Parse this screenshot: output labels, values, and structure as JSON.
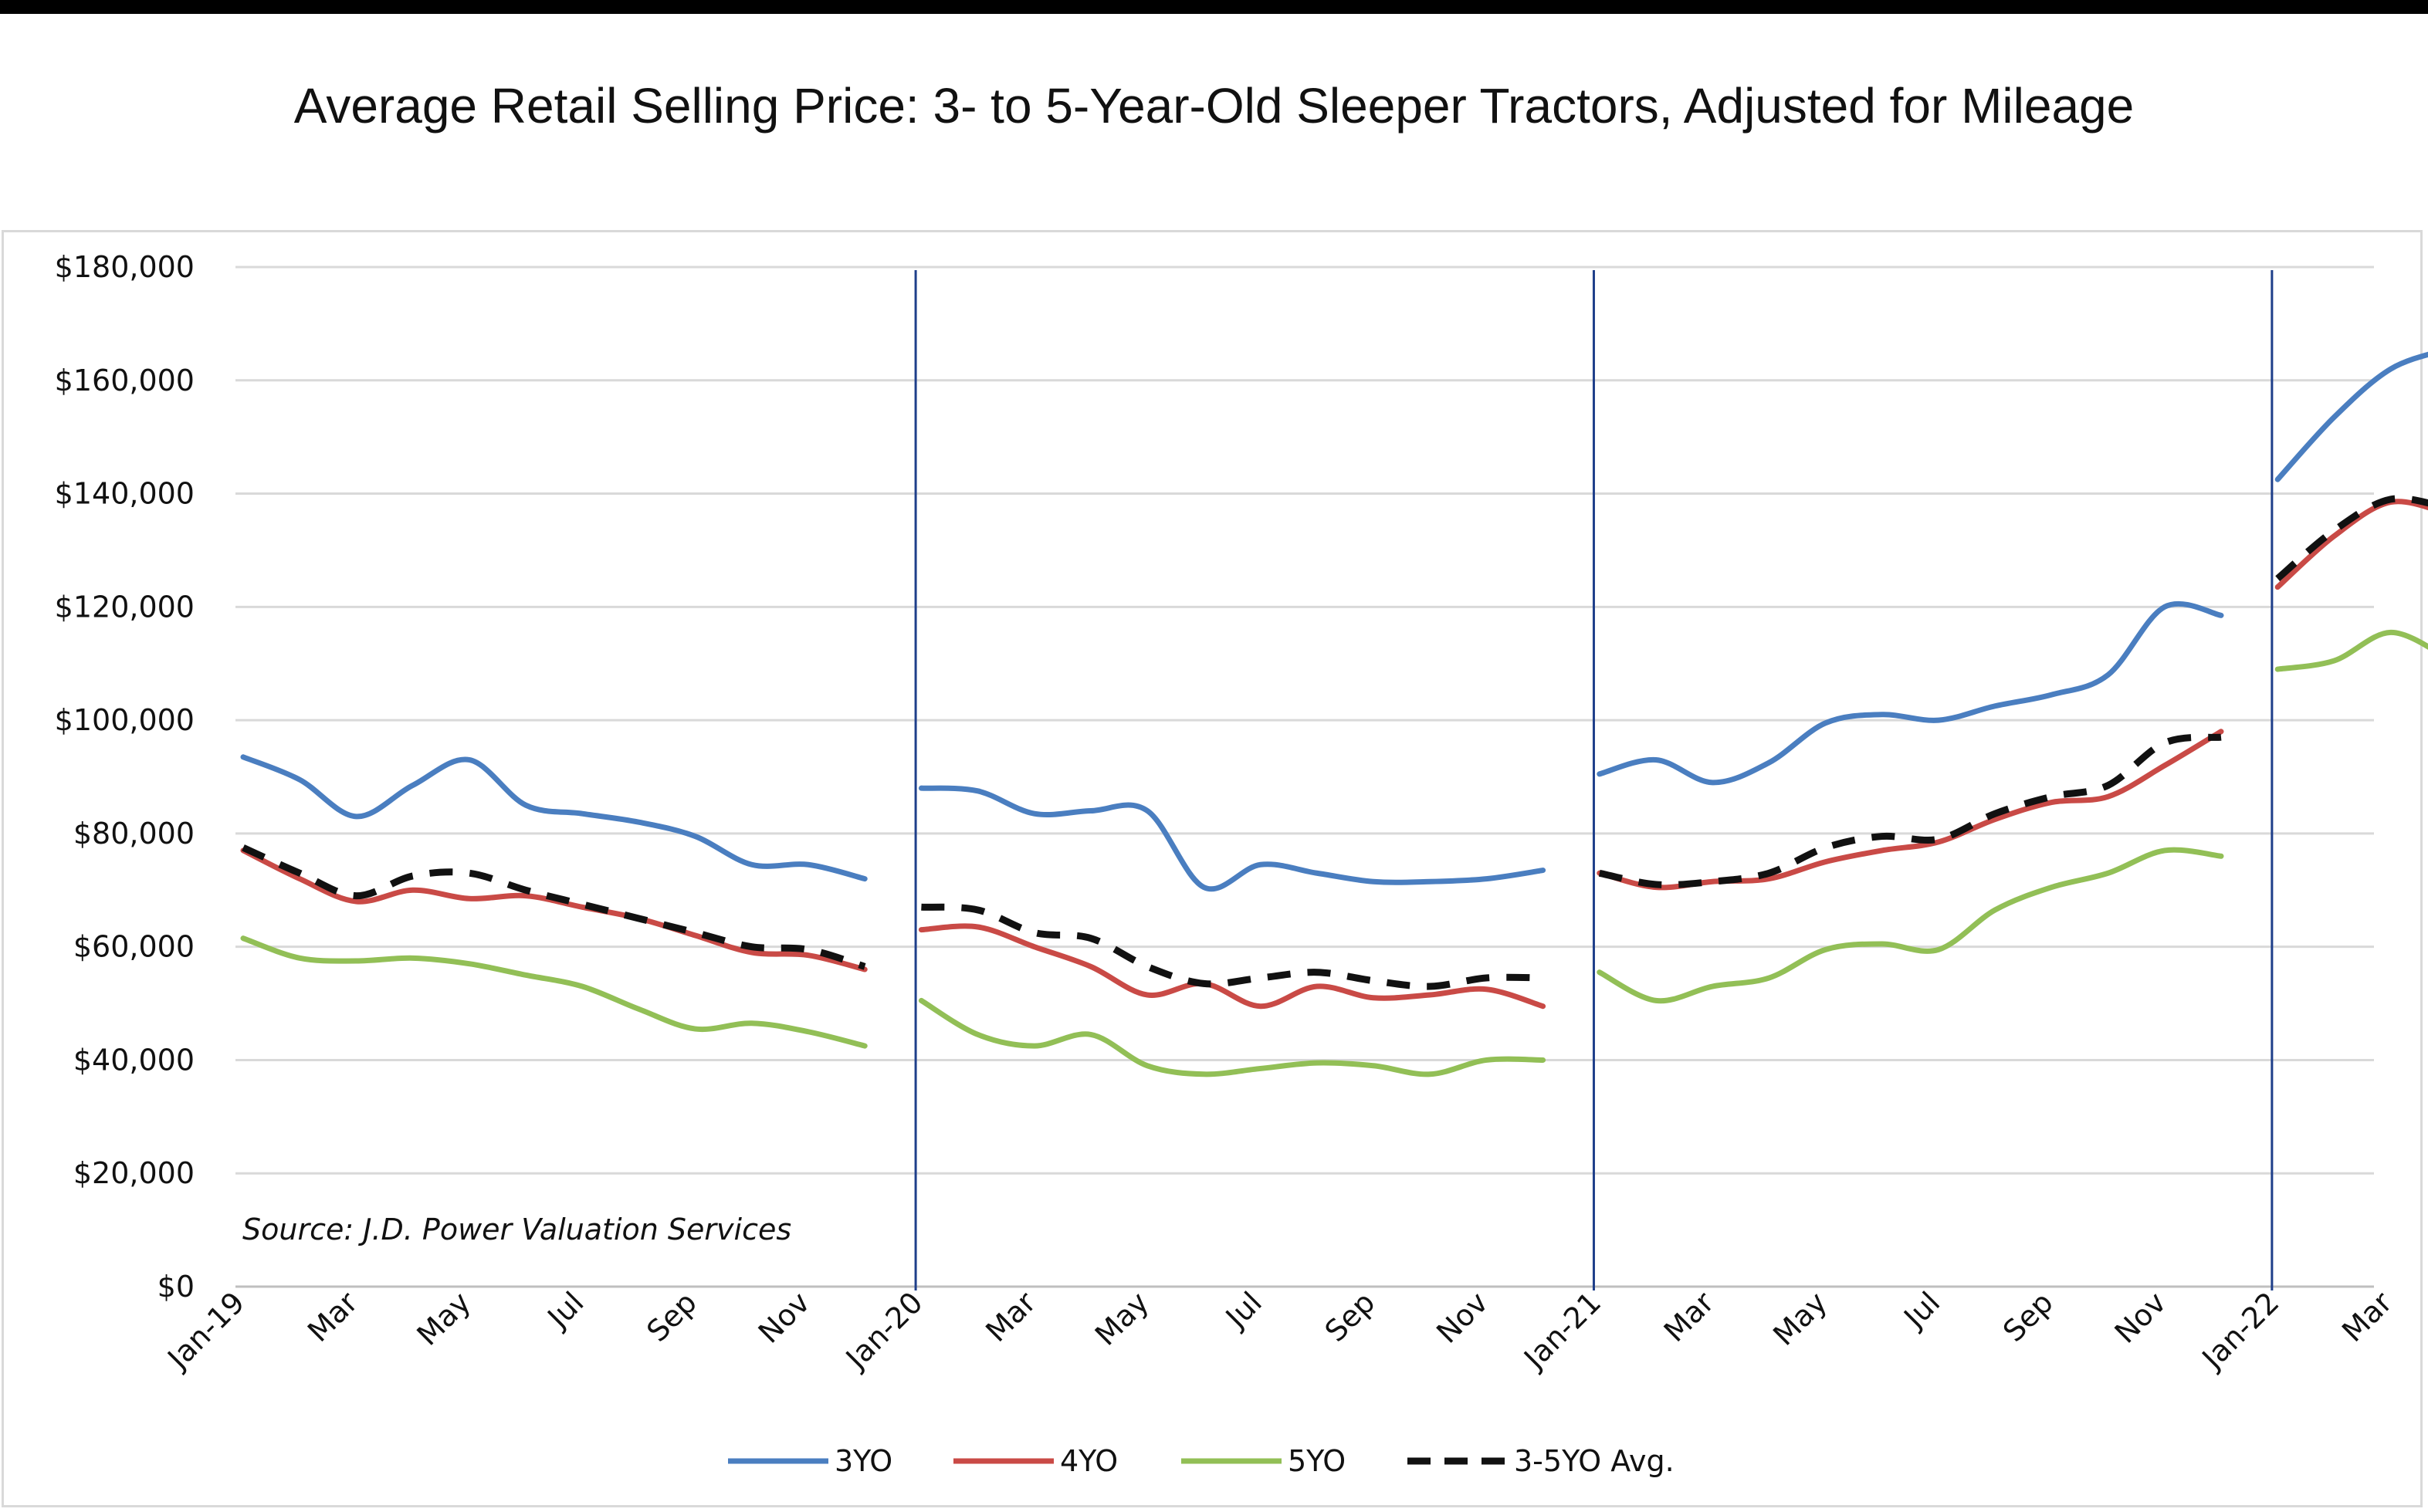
{
  "chart_data": {
    "type": "line",
    "title": "Average Retail Selling Price: 3- to 5-Year-Old Sleeper Tractors, Adjusted for Mileage",
    "source": "Source: J.D. Power Valuation Services",
    "y_tick_labels": [
      "$0",
      "$20,000",
      "$40,000",
      "$60,000",
      "$80,000",
      "$100,000",
      "$120,000",
      "$140,000",
      "$160,000",
      "$180,000"
    ],
    "y_ticks": [
      0,
      20000,
      40000,
      60000,
      80000,
      100000,
      120000,
      140000,
      160000,
      180000
    ],
    "ylim": [
      0,
      180000
    ],
    "x_tick_labels": [
      "Jan-19",
      "Mar",
      "May",
      "Jul",
      "Sep",
      "Nov",
      "Jan-20",
      "Mar",
      "May",
      "Jul",
      "Sep",
      "Nov",
      "Jan-21",
      "Mar",
      "May",
      "Jul",
      "Sep",
      "Nov",
      "Jan-22",
      "Mar"
    ],
    "grid": true,
    "legend_position": "bottom",
    "year_separators": [
      11.9,
      23.9,
      35.9
    ],
    "segments": [
      {
        "start": 0,
        "length": 12
      },
      {
        "start": 12,
        "length": 12
      },
      {
        "start": 24,
        "length": 12
      },
      {
        "start": 36,
        "length": 4
      }
    ],
    "series": [
      {
        "name": "3YO",
        "color": "#4a7ec0",
        "dashed": false,
        "values": [
          93500,
          89500,
          83000,
          88500,
          93000,
          85000,
          83500,
          82000,
          79500,
          74500,
          74500,
          72000,
          88000,
          87500,
          83500,
          84000,
          84000,
          70500,
          74500,
          73000,
          71500,
          71500,
          72000,
          73500,
          90500,
          93000,
          89000,
          92500,
          99500,
          101000,
          100000,
          102500,
          104500,
          108000,
          120000,
          118500,
          142500,
          153500,
          162000,
          165500
        ]
      },
      {
        "name": "4YO",
        "color": "#c94a46",
        "dashed": false,
        "values": [
          77000,
          72000,
          68000,
          70000,
          68500,
          69000,
          67000,
          65000,
          62000,
          59000,
          58500,
          56000,
          63000,
          63500,
          60000,
          56500,
          51500,
          53500,
          49500,
          53000,
          51000,
          51500,
          52500,
          49500,
          73000,
          70500,
          71500,
          72000,
          75000,
          77000,
          78500,
          82500,
          85500,
          86500,
          92000,
          98000,
          123500,
          132500,
          138500,
          136500
        ]
      },
      {
        "name": "5YO",
        "color": "#92bf56",
        "dashed": false,
        "values": [
          61500,
          58000,
          57500,
          58000,
          57000,
          55000,
          53000,
          49000,
          45500,
          46500,
          45000,
          42500,
          50500,
          44500,
          42500,
          44500,
          39000,
          37500,
          38500,
          39500,
          39000,
          37500,
          40000,
          40000,
          55500,
          50500,
          53000,
          54500,
          59500,
          60500,
          59500,
          66500,
          70500,
          73000,
          77000,
          76000,
          109000,
          110500,
          115500,
          111000
        ]
      },
      {
        "name": "3-5YO Avg.",
        "color": "#111111",
        "dashed": true,
        "values": [
          77500,
          73000,
          69000,
          72500,
          73000,
          70000,
          67500,
          65000,
          62500,
          60000,
          59500,
          56500,
          67000,
          66500,
          62500,
          61500,
          56500,
          53500,
          54500,
          55500,
          54000,
          53000,
          54500,
          54500,
          73000,
          71000,
          71500,
          73000,
          77500,
          79500,
          79000,
          83500,
          86500,
          88500,
          96000,
          97000,
          125000,
          133500,
          139000,
          137500
        ]
      }
    ]
  }
}
